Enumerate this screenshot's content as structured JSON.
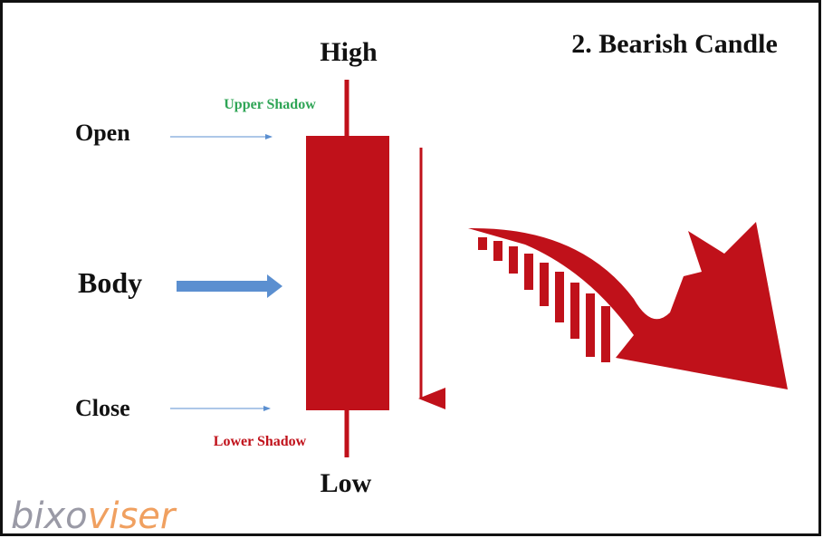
{
  "title": "2. Bearish Candle",
  "labels": {
    "high": "High",
    "low": "Low",
    "open": "Open",
    "close": "Close",
    "body": "Body",
    "upper_shadow": "Upper Shadow",
    "lower_shadow": "Lower Shadow"
  },
  "watermark": {
    "part1": "bixo",
    "part2": "viser"
  }
}
